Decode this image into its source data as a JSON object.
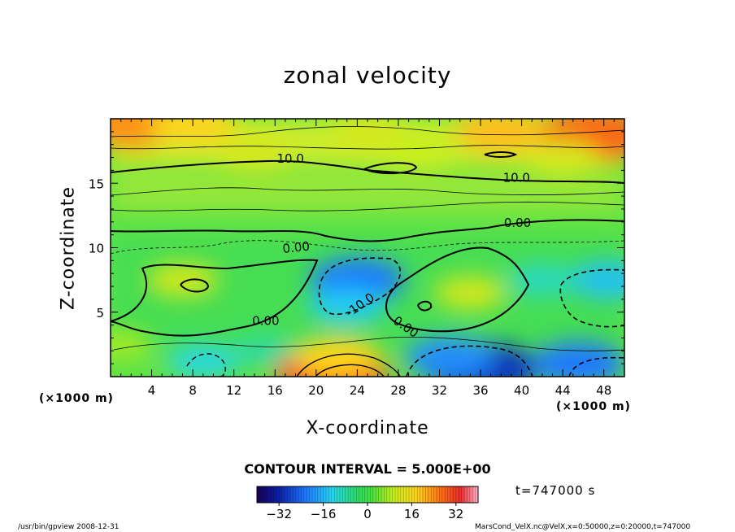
{
  "chart_data": {
    "type": "heatmap",
    "title": "zonal velocity",
    "xlabel": "X-coordinate",
    "ylabel": "Z-coordinate",
    "x_unit": "(×1000 m)",
    "x_unit_right": "(×1000 m)",
    "xlim": [
      0,
      50
    ],
    "ylim": [
      0,
      20
    ],
    "x_ticks": [
      4,
      8,
      12,
      16,
      20,
      24,
      28,
      32,
      36,
      40,
      44,
      48
    ],
    "y_ticks": [
      5,
      10,
      15
    ],
    "contour_labels": [
      "10.0",
      "10.0",
      "0.00",
      "0.00",
      "-10.0",
      "0.00",
      "0.00"
    ],
    "contour_interval": "CONTOUR INTERVAL = 5.000E+00",
    "colorbar": {
      "range": [
        -40,
        40
      ],
      "ticks": [
        -32,
        -16,
        0,
        16,
        32
      ]
    },
    "blobs": [
      {
        "x": 2,
        "z": 19.6,
        "value": 24
      },
      {
        "x": 8,
        "z": 19.5,
        "value": 18
      },
      {
        "x": 47,
        "z": 18.8,
        "value": 28
      },
      {
        "x": 38,
        "z": 19.0,
        "value": 20
      },
      {
        "x": 25,
        "z": 19.0,
        "value": 12
      },
      {
        "x": 14,
        "z": 17.5,
        "value": 12
      },
      {
        "x": 30,
        "z": 17.5,
        "value": 10
      },
      {
        "x": 44,
        "z": 17.0,
        "value": 12
      },
      {
        "x": 24,
        "z": 7.5,
        "value": -22
      },
      {
        "x": 23,
        "z": 5.5,
        "value": -14
      },
      {
        "x": 9,
        "z": 1.2,
        "value": -12
      },
      {
        "x": 15,
        "z": 2.0,
        "value": -8
      },
      {
        "x": 36,
        "z": 0.6,
        "value": -30
      },
      {
        "x": 33,
        "z": 1.5,
        "value": -20
      },
      {
        "x": 45.5,
        "z": 1.0,
        "value": -22
      },
      {
        "x": 48.5,
        "z": 7.5,
        "value": -15
      },
      {
        "x": 42,
        "z": 7.5,
        "value": -10
      },
      {
        "x": 21.5,
        "z": 0.2,
        "value": 30
      },
      {
        "x": 22,
        "z": 1.5,
        "value": 18
      },
      {
        "x": 35,
        "z": 6.5,
        "value": 12
      },
      {
        "x": 7,
        "z": 7.5,
        "value": 12
      },
      {
        "x": 1,
        "z": 2.5,
        "value": 8
      }
    ]
  },
  "time_label": "t=747000 s",
  "footer_left": "/usr/bin/gpview   2008-12-31",
  "footer_right": "MarsCond_VelX.nc@VelX,x=0:50000,z=0:20000,t=747000",
  "colors": {
    "frame": "#000000",
    "background": "#ffffff"
  }
}
